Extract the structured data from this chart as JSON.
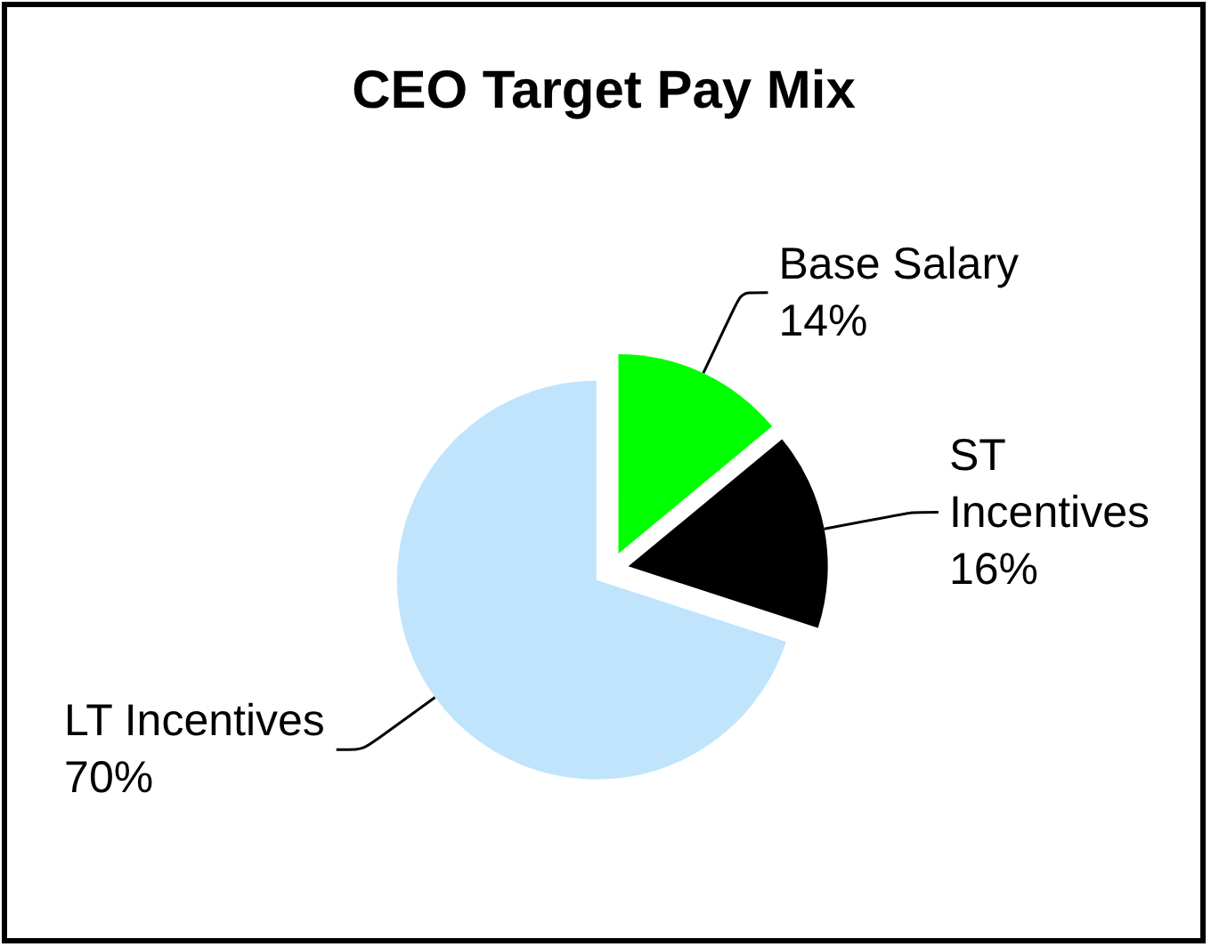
{
  "chart_data": {
    "type": "pie",
    "title": "CEO Target Pay Mix",
    "categories": [
      "Base Salary",
      "ST Incentives",
      "LT Incentives"
    ],
    "values": [
      14,
      16,
      70
    ],
    "colors": [
      "#00ff00",
      "#000000",
      "#c0e4fc"
    ],
    "value_labels": [
      "14%",
      "16%",
      "70%"
    ]
  }
}
